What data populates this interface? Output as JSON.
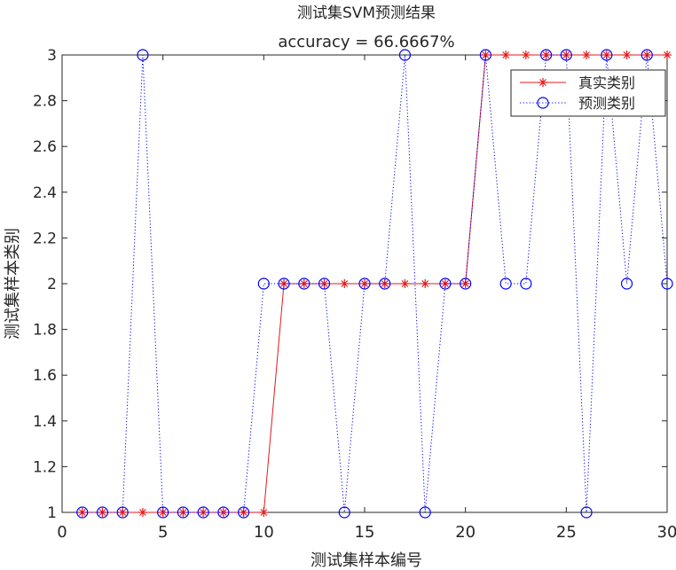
{
  "chart_data": {
    "type": "line",
    "title": "测试集SVM预测结果",
    "subtitle": "accuracy = 66.6667%",
    "xlabel": "测试集样本编号",
    "ylabel": "测试集样本类别",
    "xlim": [
      0,
      30
    ],
    "ylim": [
      1,
      3
    ],
    "xticks": [
      0,
      5,
      10,
      15,
      20,
      25,
      30
    ],
    "yticks": [
      1,
      1.2,
      1.4,
      1.6,
      1.8,
      2,
      2.2,
      2.4,
      2.6,
      2.8,
      3
    ],
    "ytick_labels": [
      "1",
      "1.2",
      "1.4",
      "1.6",
      "1.8",
      "2",
      "2.2",
      "2.4",
      "2.6",
      "2.8",
      "3"
    ],
    "grid": false,
    "legend_position": "top-right",
    "x": [
      1,
      2,
      3,
      4,
      5,
      6,
      7,
      8,
      9,
      10,
      11,
      12,
      13,
      14,
      15,
      16,
      17,
      18,
      19,
      20,
      21,
      22,
      23,
      24,
      25,
      26,
      27,
      28,
      29,
      30
    ],
    "series": [
      {
        "name": "真实类别",
        "color": "#e41a1c",
        "line_style": "solid",
        "marker": "asterisk",
        "values": [
          1,
          1,
          1,
          1,
          1,
          1,
          1,
          1,
          1,
          1,
          2,
          2,
          2,
          2,
          2,
          2,
          2,
          2,
          2,
          2,
          3,
          3,
          3,
          3,
          3,
          3,
          3,
          3,
          3,
          3
        ]
      },
      {
        "name": "预测类别",
        "color": "#0000ff",
        "line_style": "dotted",
        "marker": "circle",
        "values": [
          1,
          1,
          1,
          3,
          1,
          1,
          1,
          1,
          1,
          2,
          2,
          2,
          2,
          1,
          2,
          2,
          3,
          1,
          2,
          2,
          3,
          2,
          2,
          3,
          3,
          1,
          3,
          2,
          3,
          2
        ]
      }
    ]
  }
}
